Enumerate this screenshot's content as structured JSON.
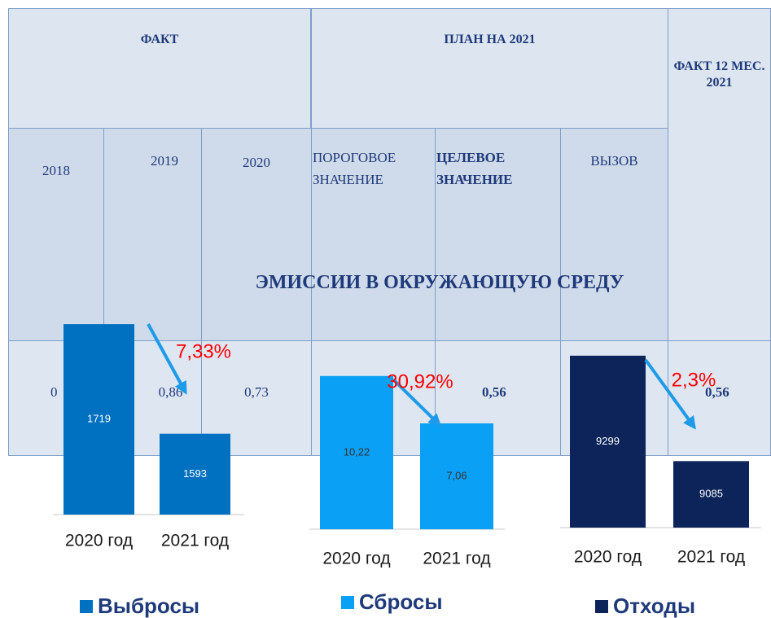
{
  "table": {
    "header": [
      "ФАКТ",
      "ПЛАН НА 2021",
      "ФАКТ 12 МЕС. 2021"
    ],
    "subheader": [
      "2018",
      "2019",
      "2020",
      "ПОРОГОВОЕ ЗНАЧЕНИЕ",
      "ЦЕЛЕВОЕ ЗНАЧЕНИЕ",
      "ВЫЗОВ"
    ],
    "title": "ЭМИССИИ В ОКРУЖАЮЩУЮ СРЕДУ",
    "row": [
      "0",
      "0,86",
      "0,73",
      "0,56",
      "0,56"
    ]
  },
  "chart_data": [
    {
      "type": "bar",
      "categories": [
        "2020 год",
        "2021 год"
      ],
      "series": [
        {
          "name": "Выбросы",
          "color": "#0070c0",
          "values": [
            1719,
            1593
          ]
        }
      ],
      "ylim": [
        1500,
        1750
      ],
      "annotation": "7,33%"
    },
    {
      "type": "bar",
      "categories": [
        "2020 год",
        "2021 год"
      ],
      "series": [
        {
          "name": "Сбросы",
          "color": "#0aa0f5",
          "values": [
            10.22,
            7.06
          ],
          "value_labels": [
            "10,22",
            "7,06"
          ]
        }
      ],
      "ylim": [
        0,
        12
      ],
      "annotation": "30,92%"
    },
    {
      "type": "bar",
      "categories": [
        "2020 год",
        "2021 год"
      ],
      "series": [
        {
          "name": "Отходы",
          "color": "#0c2459",
          "values": [
            9299,
            9085
          ]
        }
      ],
      "ylim": [
        8950,
        9350
      ],
      "annotation": "2,3%"
    }
  ]
}
